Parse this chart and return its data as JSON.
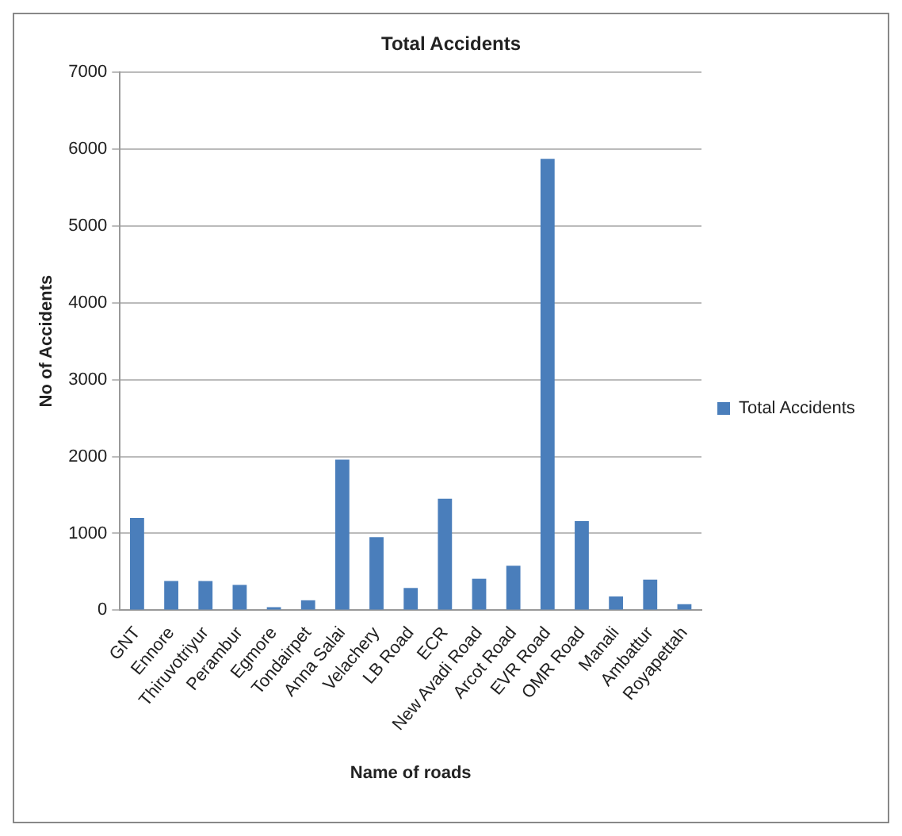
{
  "chart_data": {
    "type": "bar",
    "title": "Total Accidents",
    "xlabel": "Name of roads",
    "ylabel": "No of Accidents",
    "categories": [
      "GNT",
      "Ennore",
      "Thiruvotriyur",
      "Perambur",
      "Egmore",
      "Tondairpet",
      "Anna Salai",
      "Velachery",
      "LB Road",
      "ECR",
      "New Avadi Road",
      "Arcot Road",
      "EVR Road",
      "OMR Road",
      "Manali",
      "Ambattur",
      "Royapettah"
    ],
    "series": [
      {
        "name": "Total Accidents",
        "color": "#4a7ebb",
        "values": [
          1200,
          380,
          380,
          330,
          40,
          130,
          1960,
          950,
          290,
          1450,
          410,
          580,
          5870,
          1160,
          180,
          400,
          80
        ]
      }
    ],
    "ylim": [
      0,
      7000
    ],
    "yticks": [
      0,
      1000,
      2000,
      3000,
      4000,
      5000,
      6000,
      7000
    ],
    "grid": "y",
    "legend": "right"
  }
}
